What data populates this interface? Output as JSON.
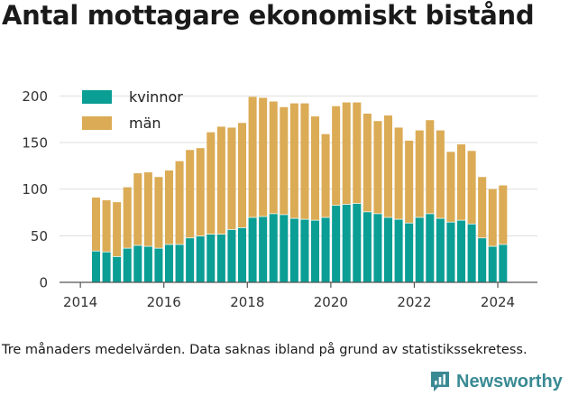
{
  "title": "Antal mottagare ekonomiskt bistånd",
  "caption": "Tre månaders medelvärden. Data saknas ibland på grund av statistikssekretess.",
  "brand": {
    "name": "Newsworthy"
  },
  "colors": {
    "kvinnor": "#0a9e95",
    "man": "#dbab55",
    "grid": "#dddddd",
    "axis": "#555555"
  },
  "chart_data": {
    "type": "bar",
    "stacked": true,
    "x_unit": "quarter",
    "x": [
      "2014-Q2",
      "2014-Q3",
      "2014-Q4",
      "2015-Q1",
      "2015-Q2",
      "2015-Q3",
      "2015-Q4",
      "2016-Q1",
      "2016-Q2",
      "2016-Q3",
      "2016-Q4",
      "2017-Q1",
      "2017-Q2",
      "2017-Q3",
      "2017-Q4",
      "2018-Q1",
      "2018-Q2",
      "2018-Q3",
      "2018-Q4",
      "2019-Q1",
      "2019-Q2",
      "2019-Q3",
      "2019-Q4",
      "2020-Q1",
      "2020-Q2",
      "2020-Q3",
      "2020-Q4",
      "2021-Q1",
      "2021-Q2",
      "2021-Q3",
      "2021-Q4",
      "2022-Q1",
      "2022-Q2",
      "2022-Q3",
      "2022-Q4",
      "2023-Q1",
      "2023-Q2",
      "2023-Q3",
      "2023-Q4",
      "2024-Q1"
    ],
    "series": [
      {
        "name": "kvinnor",
        "values": [
          34,
          33,
          28,
          37,
          40,
          39,
          37,
          41,
          41,
          48,
          50,
          52,
          52,
          57,
          59,
          70,
          71,
          74,
          73,
          69,
          68,
          67,
          70,
          83,
          84,
          85,
          76,
          74,
          70,
          68,
          64,
          70,
          74,
          69,
          65,
          67,
          63,
          48,
          39,
          41
        ]
      },
      {
        "name": "män",
        "values": [
          57,
          55,
          58,
          65,
          77,
          79,
          76,
          79,
          89,
          94,
          94,
          109,
          115,
          109,
          112,
          129,
          127,
          120,
          115,
          123,
          124,
          111,
          89,
          106,
          109,
          108,
          105,
          99,
          109,
          98,
          88,
          93,
          100,
          94,
          75,
          81,
          78,
          65,
          61,
          63
        ]
      }
    ],
    "xticks": [
      "2014",
      "2016",
      "2018",
      "2020",
      "2022",
      "2024"
    ],
    "xlim": [
      "2013.5",
      "2024.95"
    ],
    "yticks": [
      0,
      50,
      100,
      150,
      200
    ],
    "ylim": [
      0,
      210
    ],
    "grid": true,
    "legend": "top-left"
  }
}
